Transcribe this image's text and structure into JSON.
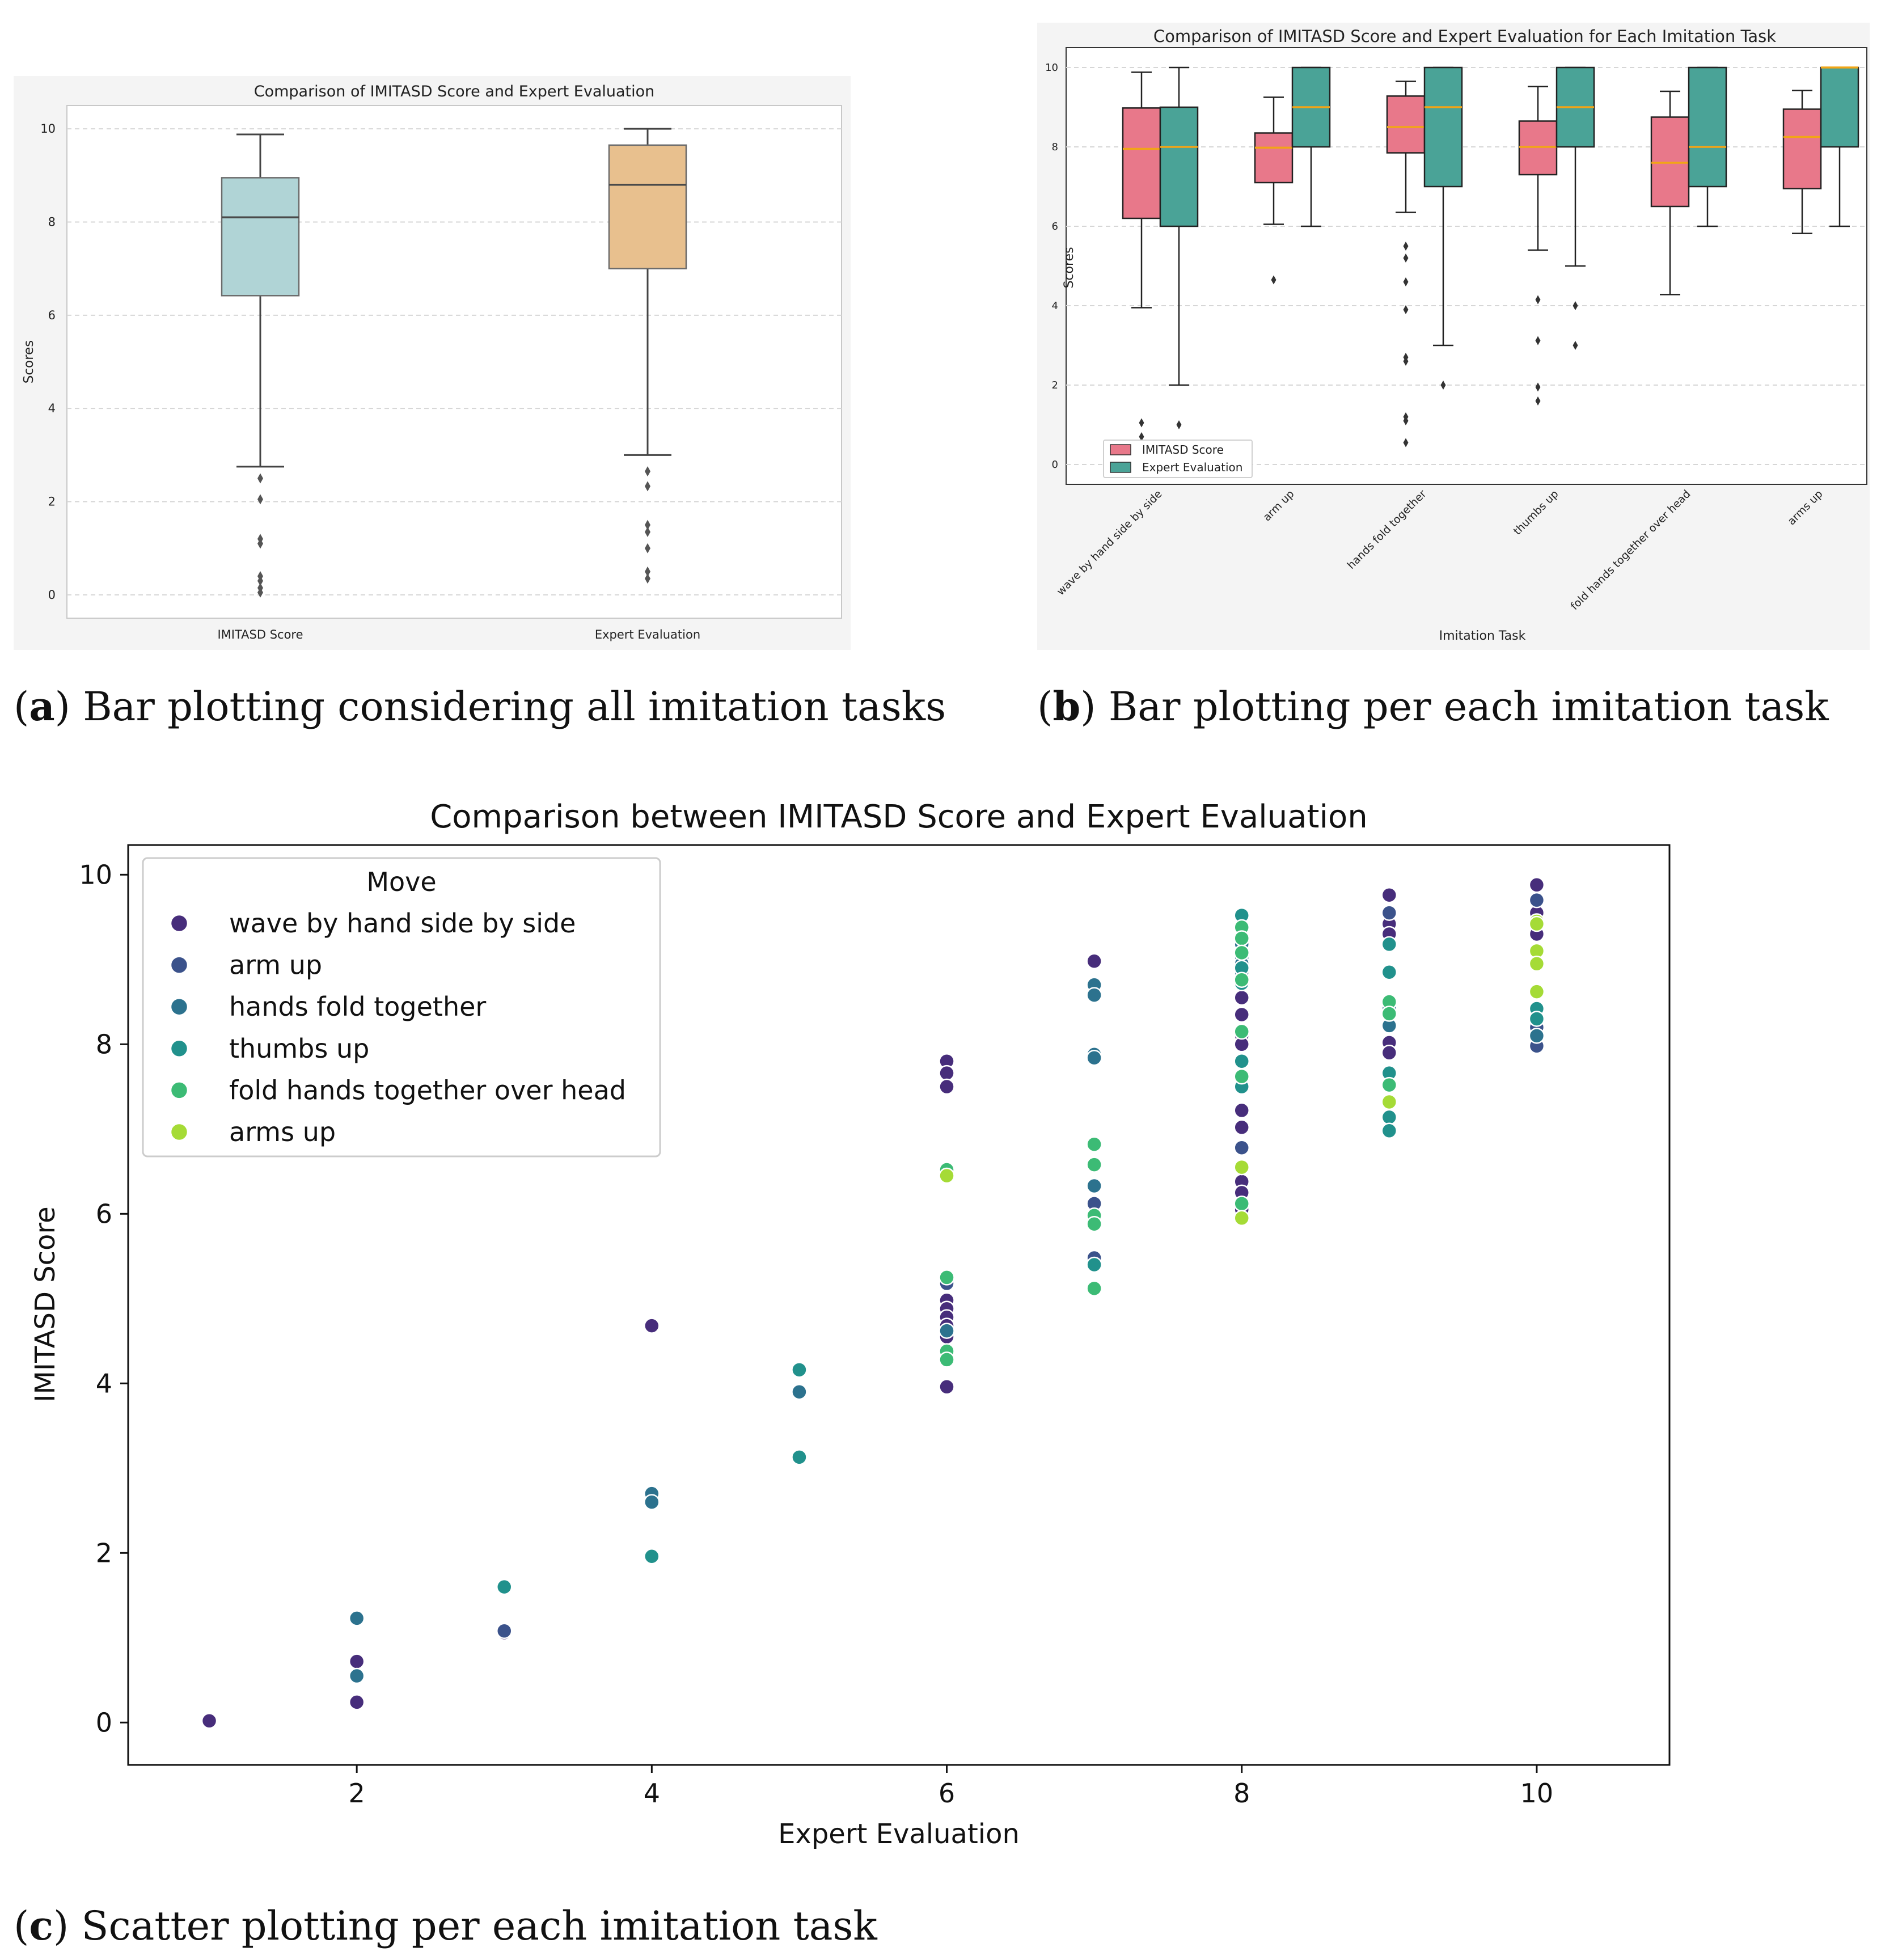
{
  "figure": {
    "captions": {
      "a": {
        "letter": "a",
        "text": "Bar plotting considering all imitation tasks"
      },
      "b": {
        "letter": "b",
        "text": "Bar plotting per each imitation task"
      },
      "c": {
        "letter": "c",
        "text": "Scatter plotting per each imitation task"
      }
    }
  },
  "colors": {
    "panel_bg": "#f4f4f4",
    "plot_bg": "#ffffff",
    "box_imitasd_a": "#b0d4d6",
    "box_expert_a": "#e8c08e",
    "box_imitasd_b": "#e8788a",
    "box_expert_b": "#4aa397",
    "median_b": "#f2a516",
    "axis_dark": "#333333",
    "grid": "#d6d6d6"
  },
  "chart_data": [
    {
      "id": "a",
      "type": "box",
      "title": "Comparison of IMITASD Score and Expert Evaluation",
      "xlabel": "",
      "ylabel": "Scores",
      "ylim": [
        -0.5,
        10.5
      ],
      "yticks": [
        0,
        2,
        4,
        6,
        8,
        10
      ],
      "grid": true,
      "categories": [
        "IMITASD Score",
        "Expert Evaluation"
      ],
      "boxes": [
        {
          "name": "IMITASD Score",
          "whisker_low": 2.75,
          "q1": 6.42,
          "median": 8.1,
          "q3": 8.95,
          "whisker_high": 9.88,
          "outliers": [
            2.5,
            2.05,
            1.2,
            1.1,
            0.4,
            0.3,
            0.15,
            0.05
          ]
        },
        {
          "name": "Expert Evaluation",
          "whisker_low": 3.0,
          "q1": 7.0,
          "median": 8.8,
          "q3": 9.65,
          "whisker_high": 10.0,
          "outliers": [
            2.65,
            2.33,
            1.5,
            1.35,
            1.0,
            0.5,
            0.35
          ]
        }
      ]
    },
    {
      "id": "b",
      "type": "box",
      "title": "Comparison of IMITASD Score and Expert Evaluation for Each Imitation Task",
      "xlabel": "Imitation Task",
      "ylabel": "Scores",
      "ylim": [
        -0.5,
        10.5
      ],
      "yticks": [
        0,
        2,
        4,
        6,
        8,
        10
      ],
      "grid": true,
      "legend": {
        "position": "lower-left",
        "entries": [
          "IMITASD Score",
          "Expert Evaluation"
        ]
      },
      "categories": [
        "wave by hand side by side",
        "arm up",
        "hands fold together",
        "thumbs up",
        "fold hands together over head",
        "arms up"
      ],
      "series": [
        {
          "name": "IMITASD Score",
          "boxes": [
            {
              "whisker_low": 3.95,
              "q1": 6.2,
              "median": 7.95,
              "q3": 8.98,
              "whisker_high": 9.88,
              "outliers": [
                1.05,
                0.7
              ]
            },
            {
              "whisker_low": 6.05,
              "q1": 7.1,
              "median": 7.98,
              "q3": 8.35,
              "whisker_high": 9.25,
              "outliers": [
                4.65
              ]
            },
            {
              "whisker_low": 6.35,
              "q1": 7.85,
              "median": 8.5,
              "q3": 9.28,
              "whisker_high": 9.65,
              "outliers": [
                5.5,
                5.2,
                4.6,
                3.9,
                2.7,
                2.6,
                1.2,
                1.1,
                0.55
              ]
            },
            {
              "whisker_low": 5.4,
              "q1": 7.3,
              "median": 8.0,
              "q3": 8.65,
              "whisker_high": 9.52,
              "outliers": [
                4.15,
                3.12,
                1.95,
                1.6
              ]
            },
            {
              "whisker_low": 4.28,
              "q1": 6.5,
              "median": 7.6,
              "q3": 8.75,
              "whisker_high": 9.4,
              "outliers": []
            },
            {
              "whisker_low": 5.82,
              "q1": 6.95,
              "median": 8.25,
              "q3": 8.95,
              "whisker_high": 9.42,
              "outliers": []
            }
          ]
        },
        {
          "name": "Expert Evaluation",
          "boxes": [
            {
              "whisker_low": 2.0,
              "q1": 6.0,
              "median": 8.0,
              "q3": 9.0,
              "whisker_high": 10.0,
              "outliers": [
                1.0
              ]
            },
            {
              "whisker_low": 6.0,
              "q1": 8.0,
              "median": 9.0,
              "q3": 10.0,
              "whisker_high": 10.0,
              "outliers": []
            },
            {
              "whisker_low": 3.0,
              "q1": 7.0,
              "median": 9.0,
              "q3": 10.0,
              "whisker_high": 10.0,
              "outliers": [
                2.0
              ]
            },
            {
              "whisker_low": 5.0,
              "q1": 8.0,
              "median": 9.0,
              "q3": 10.0,
              "whisker_high": 10.0,
              "outliers": [
                4.0,
                3.0
              ]
            },
            {
              "whisker_low": 6.0,
              "q1": 7.0,
              "median": 8.0,
              "q3": 10.0,
              "whisker_high": 10.0,
              "outliers": []
            },
            {
              "whisker_low": 6.0,
              "q1": 8.0,
              "median": 10.0,
              "q3": 10.0,
              "whisker_high": 10.0,
              "outliers": []
            }
          ]
        }
      ]
    },
    {
      "id": "c",
      "type": "scatter",
      "title": "Comparison between IMITASD Score and Expert Evaluation",
      "xlabel": "Expert Evaluation",
      "ylabel": "IMITASD Score",
      "xlim": [
        0.45,
        10.9
      ],
      "ylim": [
        -0.5,
        10.35
      ],
      "xticks": [
        2,
        4,
        6,
        8,
        10
      ],
      "yticks": [
        0,
        2,
        4,
        6,
        8,
        10
      ],
      "grid": false,
      "legend": {
        "title": "Move",
        "position": "top-left"
      },
      "series": [
        {
          "name": "wave by hand side by side",
          "color": "#472d7b",
          "points": [
            [
              1,
              0.02
            ],
            [
              2,
              0.72
            ],
            [
              2,
              0.24
            ],
            [
              3,
              1.06
            ],
            [
              4,
              4.68
            ],
            [
              6,
              7.8
            ],
            [
              6,
              7.66
            ],
            [
              6,
              7.5
            ],
            [
              6,
              4.98
            ],
            [
              6,
              4.88
            ],
            [
              6,
              4.78
            ],
            [
              6,
              4.68
            ],
            [
              6,
              4.55
            ],
            [
              6,
              3.96
            ],
            [
              7,
              8.98
            ],
            [
              8,
              8.55
            ],
            [
              8,
              8.35
            ],
            [
              8,
              8.1
            ],
            [
              8,
              8.0
            ],
            [
              8,
              7.22
            ],
            [
              8,
              7.02
            ],
            [
              8,
              6.38
            ],
            [
              8,
              6.25
            ],
            [
              8,
              6.05
            ],
            [
              9,
              9.76
            ],
            [
              9,
              9.42
            ],
            [
              9,
              9.3
            ],
            [
              9,
              8.02
            ],
            [
              9,
              7.9
            ],
            [
              10,
              9.88
            ],
            [
              10,
              9.55
            ],
            [
              10,
              9.3
            ]
          ]
        },
        {
          "name": "arm up",
          "color": "#3b528b",
          "points": [
            [
              3,
              1.08
            ],
            [
              6,
              5.18
            ],
            [
              7,
              6.12
            ],
            [
              7,
              5.48
            ],
            [
              8,
              9.12
            ],
            [
              8,
              8.82
            ],
            [
              8,
              6.78
            ],
            [
              9,
              9.55
            ],
            [
              10,
              9.7
            ],
            [
              10,
              8.2
            ],
            [
              10,
              7.98
            ]
          ]
        },
        {
          "name": "hands fold together",
          "color": "#2c728e",
          "points": [
            [
              2,
              1.23
            ],
            [
              2,
              0.55
            ],
            [
              4,
              2.7
            ],
            [
              4,
              2.6
            ],
            [
              5,
              3.9
            ],
            [
              6,
              4.62
            ],
            [
              7,
              8.7
            ],
            [
              7,
              8.58
            ],
            [
              7,
              7.88
            ],
            [
              7,
              7.84
            ],
            [
              7,
              6.33
            ],
            [
              8,
              9.18
            ],
            [
              8,
              9.02
            ],
            [
              8,
              8.95
            ],
            [
              8,
              8.85
            ],
            [
              8,
              8.15
            ],
            [
              9,
              8.22
            ],
            [
              9,
              8.42
            ],
            [
              10,
              8.95
            ],
            [
              10,
              8.3
            ],
            [
              10,
              8.1
            ]
          ]
        },
        {
          "name": "thumbs up",
          "color": "#21918c",
          "points": [
            [
              3,
              1.6
            ],
            [
              4,
              1.96
            ],
            [
              5,
              4.16
            ],
            [
              5,
              3.13
            ],
            [
              7,
              5.4
            ],
            [
              8,
              9.52
            ],
            [
              8,
              8.9
            ],
            [
              8,
              8.72
            ],
            [
              8,
              7.8
            ],
            [
              8,
              7.5
            ],
            [
              9,
              9.18
            ],
            [
              9,
              8.85
            ],
            [
              9,
              7.66
            ],
            [
              9,
              7.14
            ],
            [
              9,
              6.98
            ],
            [
              10,
              8.42
            ],
            [
              10,
              8.3
            ]
          ]
        },
        {
          "name": "fold hands together over head",
          "color": "#3cbb75",
          "points": [
            [
              6,
              6.52
            ],
            [
              6,
              5.25
            ],
            [
              6,
              4.38
            ],
            [
              6,
              4.28
            ],
            [
              7,
              6.82
            ],
            [
              7,
              6.58
            ],
            [
              7,
              5.98
            ],
            [
              7,
              5.88
            ],
            [
              7,
              5.12
            ],
            [
              8,
              9.38
            ],
            [
              8,
              9.25
            ],
            [
              8,
              9.08
            ],
            [
              8,
              8.76
            ],
            [
              8,
              8.15
            ],
            [
              8,
              7.62
            ],
            [
              8,
              6.12
            ],
            [
              9,
              8.5
            ],
            [
              9,
              8.36
            ],
            [
              9,
              7.52
            ]
          ]
        },
        {
          "name": "arms up",
          "color": "#a5db36",
          "points": [
            [
              6,
              6.45
            ],
            [
              8,
              6.55
            ],
            [
              8,
              5.95
            ],
            [
              9,
              7.32
            ],
            [
              10,
              9.45
            ],
            [
              10,
              9.42
            ],
            [
              10,
              9.1
            ],
            [
              10,
              8.95
            ],
            [
              10,
              8.62
            ]
          ]
        }
      ]
    }
  ]
}
